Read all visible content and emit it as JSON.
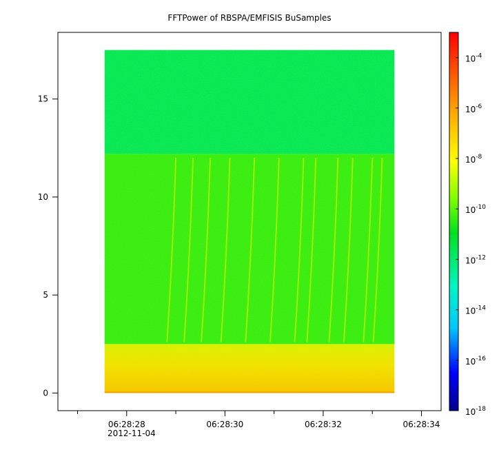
{
  "chart_data": {
    "type": "heatmap",
    "title": "FFTPower of RBSPA/EMFISIS  BuSamples",
    "xlabel": "",
    "ylabel": "",
    "x_ticks": [
      {
        "value": 28,
        "label": "06:28:28"
      },
      {
        "value": 30,
        "label": "06:28:30"
      },
      {
        "value": 32,
        "label": "06:28:32"
      },
      {
        "value": 34,
        "label": "06:28:34"
      }
    ],
    "x_minor_ticks": [
      27,
      29,
      31,
      33
    ],
    "x_date_label": "2012-11-04",
    "xlim": [
      26.6,
      34.4
    ],
    "data_xrange": [
      27.55,
      33.45
    ],
    "y_ticks": [
      0,
      5,
      10,
      15
    ],
    "ylim": [
      -0.9,
      18.4
    ],
    "data_yrange": [
      0,
      17.5
    ],
    "colorbar": {
      "scale": "log",
      "range": [
        1e-18,
        0.001
      ],
      "tick_labels": [
        {
          "exp": -18,
          "base": "10",
          "sup": "-18"
        },
        {
          "exp": -16,
          "base": "10",
          "sup": "-16"
        },
        {
          "exp": -14,
          "base": "10",
          "sup": "-14"
        },
        {
          "exp": -12,
          "base": "10",
          "sup": "-12"
        },
        {
          "exp": -10,
          "base": "10",
          "sup": "-10"
        },
        {
          "exp": -8,
          "base": "10",
          "sup": "-8"
        },
        {
          "exp": -6,
          "base": "10",
          "sup": "-6"
        },
        {
          "exp": -4,
          "base": "10",
          "sup": "-4"
        }
      ]
    },
    "power_bands": [
      {
        "f_min": 0,
        "f_max": 2.5,
        "log10_power": -8.3
      },
      {
        "f_min": 2.5,
        "f_max": 12.2,
        "log10_power": -10.4
      },
      {
        "f_min": 12.2,
        "f_max": 17.5,
        "log10_power": -11.7
      }
    ],
    "grid": false,
    "colors": {
      "low": "#00008b",
      "mid": "#00ff00",
      "high": "#ff0000"
    }
  }
}
